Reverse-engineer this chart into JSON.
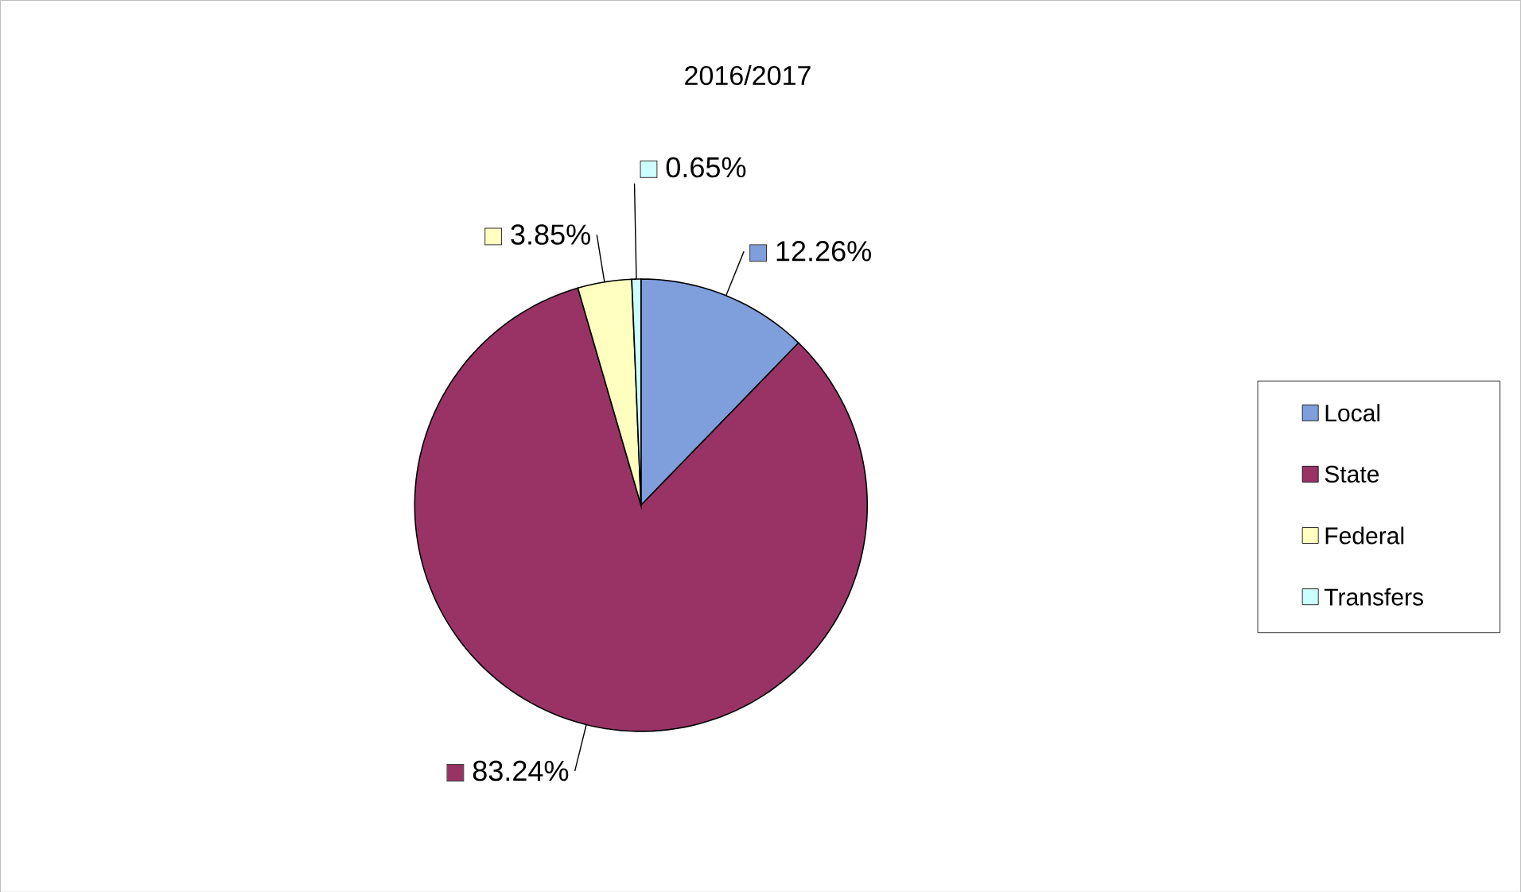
{
  "chart_data": {
    "type": "pie",
    "title": "2016/2017",
    "categories": [
      "Local",
      "State",
      "Federal",
      "Transfers"
    ],
    "values": [
      12.26,
      83.24,
      3.85,
      0.65
    ],
    "colors": [
      "#7f9fdc",
      "#993366",
      "#ffffc0",
      "#ccffff"
    ],
    "value_labels": [
      "12.26%",
      "83.24%",
      "3.85%",
      "0.65%"
    ],
    "legend": "right"
  }
}
